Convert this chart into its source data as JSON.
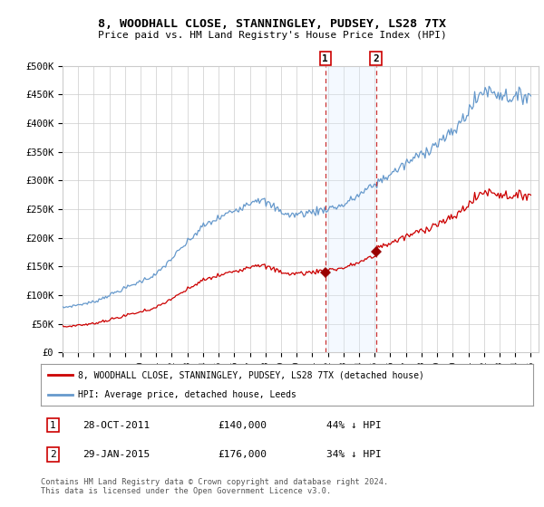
{
  "title": "8, WOODHALL CLOSE, STANNINGLEY, PUDSEY, LS28 7TX",
  "subtitle": "Price paid vs. HM Land Registry's House Price Index (HPI)",
  "footer": "Contains HM Land Registry data © Crown copyright and database right 2024.\nThis data is licensed under the Open Government Licence v3.0.",
  "legend_line1": "8, WOODHALL CLOSE, STANNINGLEY, PUDSEY, LS28 7TX (detached house)",
  "legend_line2": "HPI: Average price, detached house, Leeds",
  "sale1_date": "28-OCT-2011",
  "sale1_price": 140000,
  "sale1_pct": "44% ↓ HPI",
  "sale1_year": 2011.83,
  "sale2_date": "29-JAN-2015",
  "sale2_price": 176000,
  "sale2_pct": "34% ↓ HPI",
  "sale2_year": 2015.08,
  "hpi_color": "#6699cc",
  "price_color": "#cc0000",
  "marker_color": "#990000",
  "shade_color": "#ddeeff",
  "vline_color": "#cc3333",
  "background_color": "#ffffff",
  "grid_color": "#cccccc",
  "ylim": [
    0,
    500000
  ],
  "yticks": [
    0,
    50000,
    100000,
    150000,
    200000,
    250000,
    300000,
    350000,
    400000,
    450000,
    500000
  ],
  "ytick_labels": [
    "£0",
    "£50K",
    "£100K",
    "£150K",
    "£200K",
    "£250K",
    "£300K",
    "£350K",
    "£400K",
    "£450K",
    "£500K"
  ],
  "xlim_start": 1995,
  "xlim_end": 2025.5
}
